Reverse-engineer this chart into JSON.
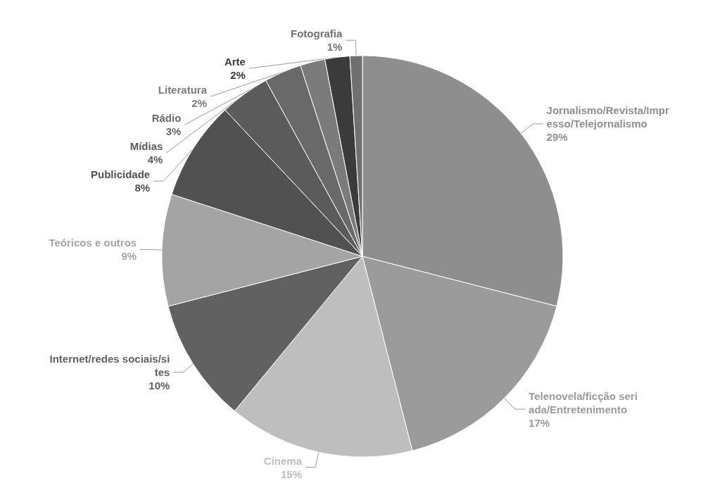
{
  "chart_data": {
    "type": "pie",
    "categories": [
      "Jornalismo/Revista/Impresso/Telejornalismo",
      "Telenovela/ficção seriada/Entretenimento",
      "Cinema",
      "Internet/redes sociais/sites",
      "Teóricos e outros",
      "Publicidade",
      "Mídias",
      "Rádio",
      "Literatura",
      "Arte",
      "Fotografia"
    ],
    "values": [
      29,
      17,
      15,
      10,
      9,
      8,
      4,
      3,
      2,
      2,
      1
    ],
    "value_labels": [
      "29%",
      "17%",
      "15%",
      "10%",
      "9%",
      "8%",
      "4%",
      "3%",
      "2%",
      "2%",
      "1%"
    ],
    "colors": [
      "#8e8e8e",
      "#9b9b9b",
      "#bebebe",
      "#616161",
      "#a4a4a4",
      "#515151",
      "#5b5b5b",
      "#696969",
      "#7b7b7b",
      "#3b3b3b",
      "#707070"
    ],
    "legend": false
  }
}
